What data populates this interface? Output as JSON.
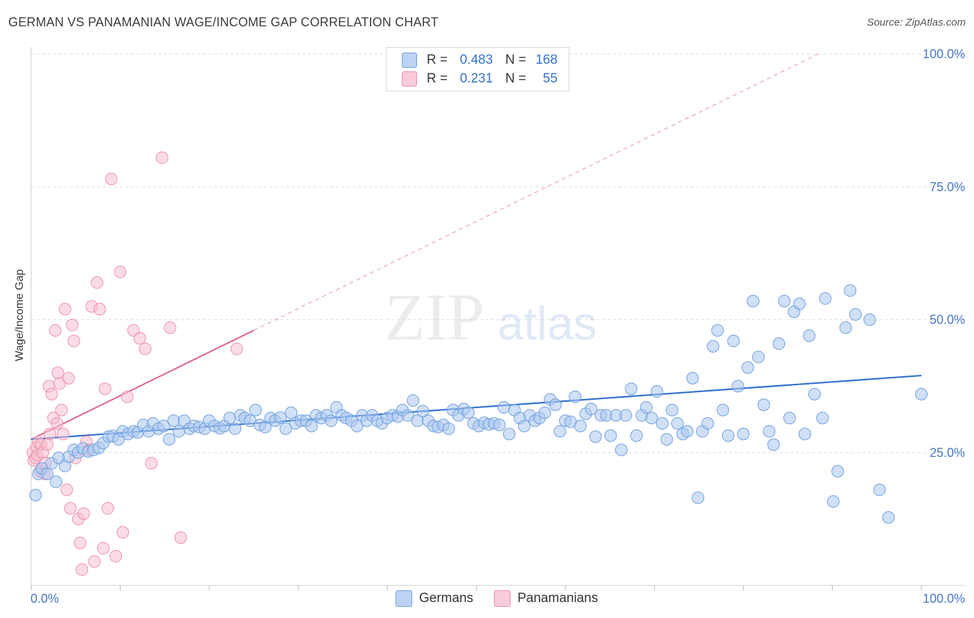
{
  "title": "GERMAN VS PANAMANIAN WAGE/INCOME GAP CORRELATION CHART",
  "source": "Source: ZipAtlas.com",
  "watermark": {
    "zip": "ZIP",
    "atlas": "atlas"
  },
  "legend": {
    "rows": [
      {
        "r_label": "R =",
        "r_value": "0.483",
        "n_label": "N =",
        "n_value": "168"
      },
      {
        "r_label": "R =",
        "r_value": "0.231",
        "n_label": "N =",
        "n_value": "55"
      }
    ]
  },
  "bottom_legend": {
    "germans": "Germans",
    "panamanians": "Panamanians"
  },
  "colors": {
    "germans_fill": "#a9c6ef",
    "germans_stroke": "#6f9fde",
    "germans_line": "#2f6fd0",
    "panamanians_fill": "#f7c0d0",
    "panamanians_stroke": "#ee8fac",
    "panamanians_line": "#e06a90",
    "axis_text": "#4a78c9",
    "grid": "#dcdcdc"
  },
  "chart_data": {
    "type": "scatter",
    "title": "GERMAN VS PANAMANIAN WAGE/INCOME GAP CORRELATION CHART",
    "xlabel": "",
    "ylabel": "Wage/Income Gap",
    "xlim": [
      0,
      100
    ],
    "ylim": [
      0,
      100
    ],
    "x_tick_labels": [
      "0.0%",
      "100.0%"
    ],
    "y_tick_labels": [
      "25.0%",
      "50.0%",
      "75.0%",
      "100.0%"
    ],
    "y_ticks": [
      25,
      50,
      75,
      100
    ],
    "grid": true,
    "legend_position": "top-center",
    "series": [
      {
        "name": "Germans",
        "R": 0.483,
        "N": 168,
        "trendline": {
          "x": [
            0,
            100
          ],
          "y": [
            27.5,
            39.5
          ]
        },
        "points": [
          [
            0.5,
            17
          ],
          [
            0.8,
            21
          ],
          [
            1.2,
            22
          ],
          [
            1.8,
            21
          ],
          [
            2.3,
            23
          ],
          [
            2.8,
            19.5
          ],
          [
            3.1,
            24
          ],
          [
            3.8,
            22.5
          ],
          [
            4.2,
            24.2
          ],
          [
            4.8,
            25.5
          ],
          [
            5.3,
            25
          ],
          [
            5.8,
            25.8
          ],
          [
            6.4,
            25.2
          ],
          [
            7,
            25.5
          ],
          [
            7.6,
            25.9
          ],
          [
            8.1,
            26.8
          ],
          [
            8.7,
            28
          ],
          [
            9.2,
            28.1
          ],
          [
            9.8,
            27.5
          ],
          [
            10.3,
            29
          ],
          [
            10.9,
            28.5
          ],
          [
            11.5,
            29
          ],
          [
            12,
            28.8
          ],
          [
            12.6,
            30.2
          ],
          [
            13.2,
            29
          ],
          [
            13.7,
            30.5
          ],
          [
            14.3,
            29.5
          ],
          [
            14.9,
            30
          ],
          [
            15.5,
            27.5
          ],
          [
            16,
            31
          ],
          [
            16.6,
            29
          ],
          [
            17.2,
            31
          ],
          [
            17.8,
            29.5
          ],
          [
            18.3,
            30
          ],
          [
            18.9,
            29.8
          ],
          [
            19.5,
            29.5
          ],
          [
            20,
            31
          ],
          [
            20.6,
            30
          ],
          [
            21.2,
            29.6
          ],
          [
            21.7,
            30
          ],
          [
            22.3,
            31.5
          ],
          [
            22.9,
            29.5
          ],
          [
            23.5,
            32
          ],
          [
            24,
            31.5
          ],
          [
            24.6,
            31
          ],
          [
            25.2,
            33
          ],
          [
            25.7,
            30.2
          ],
          [
            26.3,
            29.8
          ],
          [
            26.9,
            31.5
          ],
          [
            27.4,
            31
          ],
          [
            28,
            31.6
          ],
          [
            28.6,
            29.5
          ],
          [
            29.2,
            32.5
          ],
          [
            29.7,
            30.5
          ],
          [
            30.3,
            31
          ],
          [
            30.9,
            31
          ],
          [
            31.5,
            30
          ],
          [
            32,
            32
          ],
          [
            32.6,
            31.5
          ],
          [
            33.2,
            32
          ],
          [
            33.7,
            31
          ],
          [
            34.3,
            33.5
          ],
          [
            34.9,
            32
          ],
          [
            35.4,
            31.5
          ],
          [
            36,
            31
          ],
          [
            36.6,
            30
          ],
          [
            37.2,
            32
          ],
          [
            37.7,
            31
          ],
          [
            38.3,
            32
          ],
          [
            38.9,
            31
          ],
          [
            39.4,
            30.5
          ],
          [
            40,
            31.5
          ],
          [
            40.6,
            32
          ],
          [
            41.2,
            31.8
          ],
          [
            41.7,
            33
          ],
          [
            42.3,
            32
          ],
          [
            42.9,
            34.8
          ],
          [
            43.4,
            31
          ],
          [
            44,
            32.8
          ],
          [
            44.6,
            31
          ],
          [
            45.2,
            30
          ],
          [
            45.7,
            29.8
          ],
          [
            46.3,
            30.2
          ],
          [
            46.9,
            29.5
          ],
          [
            47.4,
            33
          ],
          [
            48,
            32
          ],
          [
            48.6,
            33.2
          ],
          [
            49.1,
            32.5
          ],
          [
            49.7,
            30.5
          ],
          [
            50.3,
            30
          ],
          [
            50.9,
            30.6
          ],
          [
            51.4,
            30.3
          ],
          [
            52,
            30.5
          ],
          [
            52.6,
            30.2
          ],
          [
            53.1,
            33.5
          ],
          [
            53.7,
            28.5
          ],
          [
            54.3,
            33
          ],
          [
            54.9,
            31.5
          ],
          [
            55.4,
            30
          ],
          [
            56,
            32
          ],
          [
            56.6,
            31
          ],
          [
            57.1,
            31.5
          ],
          [
            57.7,
            32.5
          ],
          [
            58.3,
            35
          ],
          [
            58.9,
            34
          ],
          [
            59.4,
            29
          ],
          [
            60,
            31
          ],
          [
            60.6,
            30.8
          ],
          [
            61.1,
            35.5
          ],
          [
            61.7,
            30
          ],
          [
            62.3,
            32.3
          ],
          [
            62.9,
            33.2
          ],
          [
            63.4,
            28
          ],
          [
            64,
            32
          ],
          [
            64.6,
            32
          ],
          [
            65.1,
            28.2
          ],
          [
            65.7,
            32
          ],
          [
            66.3,
            25.5
          ],
          [
            66.8,
            32
          ],
          [
            67.4,
            37
          ],
          [
            68,
            28.2
          ],
          [
            68.6,
            32
          ],
          [
            69.1,
            33.5
          ],
          [
            69.7,
            31.5
          ],
          [
            70.3,
            36.5
          ],
          [
            70.9,
            30.5
          ],
          [
            71.4,
            27.5
          ],
          [
            72,
            33
          ],
          [
            72.6,
            30.5
          ],
          [
            73.2,
            28.5
          ],
          [
            73.7,
            29
          ],
          [
            74.3,
            39
          ],
          [
            74.9,
            16.5
          ],
          [
            75.4,
            29
          ],
          [
            76,
            30.5
          ],
          [
            76.6,
            45
          ],
          [
            77.1,
            48
          ],
          [
            77.7,
            33
          ],
          [
            78.3,
            28.2
          ],
          [
            78.9,
            46
          ],
          [
            79.4,
            37.5
          ],
          [
            80,
            28.5
          ],
          [
            80.5,
            41
          ],
          [
            81.1,
            53.5
          ],
          [
            81.7,
            43
          ],
          [
            82.3,
            34
          ],
          [
            82.9,
            29
          ],
          [
            83.4,
            26.5
          ],
          [
            84,
            45.5
          ],
          [
            84.6,
            53.5
          ],
          [
            85.2,
            31.5
          ],
          [
            85.7,
            51.5
          ],
          [
            86.3,
            53
          ],
          [
            86.9,
            28.5
          ],
          [
            87.4,
            47
          ],
          [
            88,
            36
          ],
          [
            88.9,
            31.5
          ],
          [
            89.2,
            54
          ],
          [
            90.1,
            15.8
          ],
          [
            90.6,
            21.5
          ],
          [
            91.5,
            48.5
          ],
          [
            92,
            55.5
          ],
          [
            92.6,
            51
          ],
          [
            94.2,
            50
          ],
          [
            95.3,
            18
          ],
          [
            96.3,
            12.8
          ],
          [
            100,
            36
          ]
        ]
      },
      {
        "name": "Panamanians",
        "R": 0.231,
        "N": 55,
        "trendline": {
          "x": [
            0,
            25
          ],
          "y": [
            27.5,
            48
          ]
        },
        "extrapolation": {
          "x": [
            25,
            100
          ],
          "y": [
            48,
            109.5
          ]
        },
        "points": [
          [
            0.2,
            25
          ],
          [
            0.3,
            23.5
          ],
          [
            0.5,
            24
          ],
          [
            0.6,
            26
          ],
          [
            0.7,
            24.5
          ],
          [
            0.8,
            27
          ],
          [
            1,
            21.5
          ],
          [
            1.1,
            26.5
          ],
          [
            1.3,
            25
          ],
          [
            1.5,
            21
          ],
          [
            1.6,
            23
          ],
          [
            1.8,
            26.5
          ],
          [
            2,
            37.5
          ],
          [
            2.1,
            28.5
          ],
          [
            2.3,
            36
          ],
          [
            2.5,
            31.5
          ],
          [
            2.7,
            48
          ],
          [
            2.9,
            30.5
          ],
          [
            3,
            40
          ],
          [
            3.2,
            38
          ],
          [
            3.4,
            33
          ],
          [
            3.6,
            28.5
          ],
          [
            3.8,
            52
          ],
          [
            4,
            18
          ],
          [
            4.2,
            39
          ],
          [
            4.4,
            14.5
          ],
          [
            4.6,
            49
          ],
          [
            4.8,
            46
          ],
          [
            5,
            24
          ],
          [
            5.3,
            12.5
          ],
          [
            5.5,
            8
          ],
          [
            5.7,
            3
          ],
          [
            5.9,
            13.5
          ],
          [
            6.2,
            27
          ],
          [
            6.5,
            25.5
          ],
          [
            6.8,
            52.5
          ],
          [
            7.1,
            4.5
          ],
          [
            7.4,
            57
          ],
          [
            7.7,
            52
          ],
          [
            8.1,
            7
          ],
          [
            8.3,
            37
          ],
          [
            8.6,
            14.5
          ],
          [
            9,
            76.5
          ],
          [
            9.5,
            5.5
          ],
          [
            10,
            59
          ],
          [
            10.3,
            10
          ],
          [
            10.8,
            35.5
          ],
          [
            11.5,
            48
          ],
          [
            12.2,
            46.5
          ],
          [
            12.8,
            44.5
          ],
          [
            13.5,
            23
          ],
          [
            14.7,
            80.5
          ],
          [
            15.6,
            48.5
          ],
          [
            16.8,
            9
          ],
          [
            23.1,
            44.5
          ]
        ]
      }
    ]
  }
}
